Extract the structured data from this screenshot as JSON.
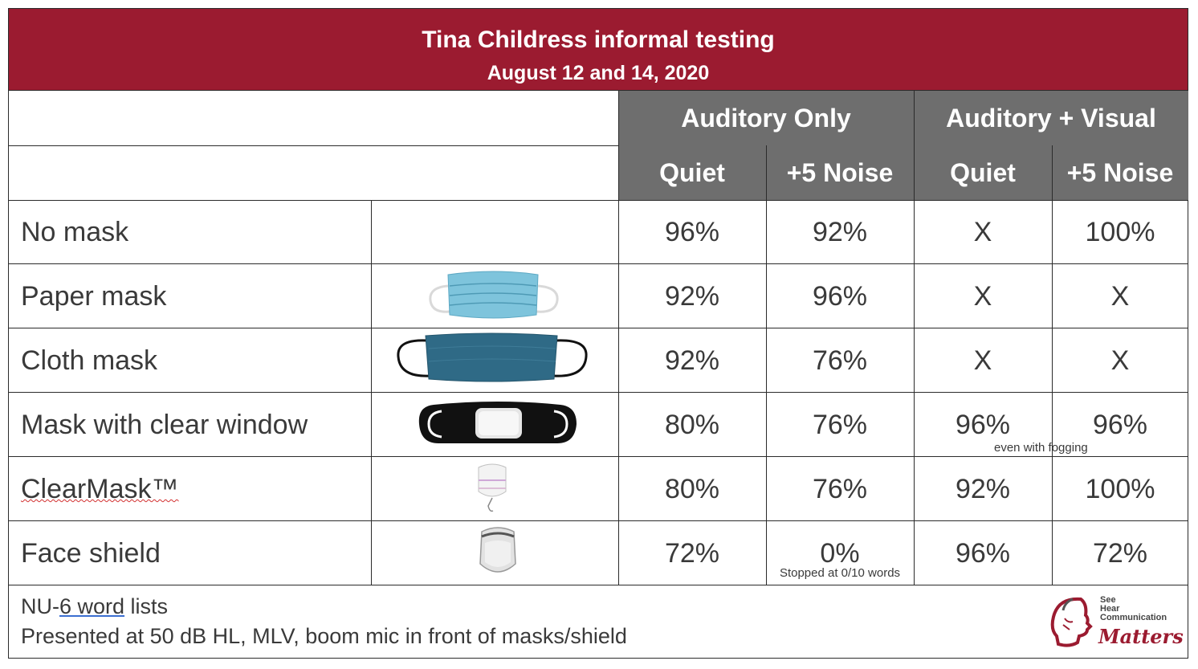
{
  "title": "Tina Childress informal testing",
  "subtitle": "August 12 and 14, 2020",
  "groups": {
    "auditory_only": "Auditory Only",
    "auditory_visual": "Auditory + Visual"
  },
  "subheaders": {
    "ao_quiet": "Quiet",
    "ao_noise": "+5 Noise",
    "av_quiet": "Quiet",
    "av_noise": "+5 Noise"
  },
  "rows": [
    {
      "label": "No mask",
      "image": "none",
      "ao_quiet": "96%",
      "ao_noise": "92%",
      "av_quiet": "X",
      "av_noise": "100%"
    },
    {
      "label": "Paper mask",
      "image": "paper-mask-image",
      "ao_quiet": "92%",
      "ao_noise": "96%",
      "av_quiet": "X",
      "av_noise": "X"
    },
    {
      "label": "Cloth mask",
      "image": "cloth-mask-image",
      "ao_quiet": "92%",
      "ao_noise": "76%",
      "av_quiet": "X",
      "av_noise": "X"
    },
    {
      "label": "Mask with clear window",
      "image": "clear-window-mask-image",
      "ao_quiet": "80%",
      "ao_noise": "76%",
      "av_quiet": "96%",
      "av_noise": "96%",
      "note": "even with fogging"
    },
    {
      "label": "ClearMask™",
      "image": "clearmask-image",
      "ao_quiet": "80%",
      "ao_noise": "76%",
      "av_quiet": "92%",
      "av_noise": "100%"
    },
    {
      "label": "Face shield",
      "image": "face-shield-image",
      "ao_quiet": "72%",
      "ao_noise": "0%",
      "av_quiet": "96%",
      "av_noise": "72%",
      "note": "Stopped at 0/10 words"
    }
  ],
  "footer": {
    "line1_prefix": "NU-",
    "line1_link": "6 word",
    "line1_suffix": " lists",
    "line2": "Presented at 50 dB HL, MLV, boom mic in front of masks/shield"
  },
  "logo": {
    "line1": "See",
    "line2": "Hear",
    "line3": "Communication",
    "script": "Matters"
  },
  "colors": {
    "header_red": "#9b1b30",
    "header_gray": "#6e6e6e",
    "text": "#3a3a3a"
  }
}
